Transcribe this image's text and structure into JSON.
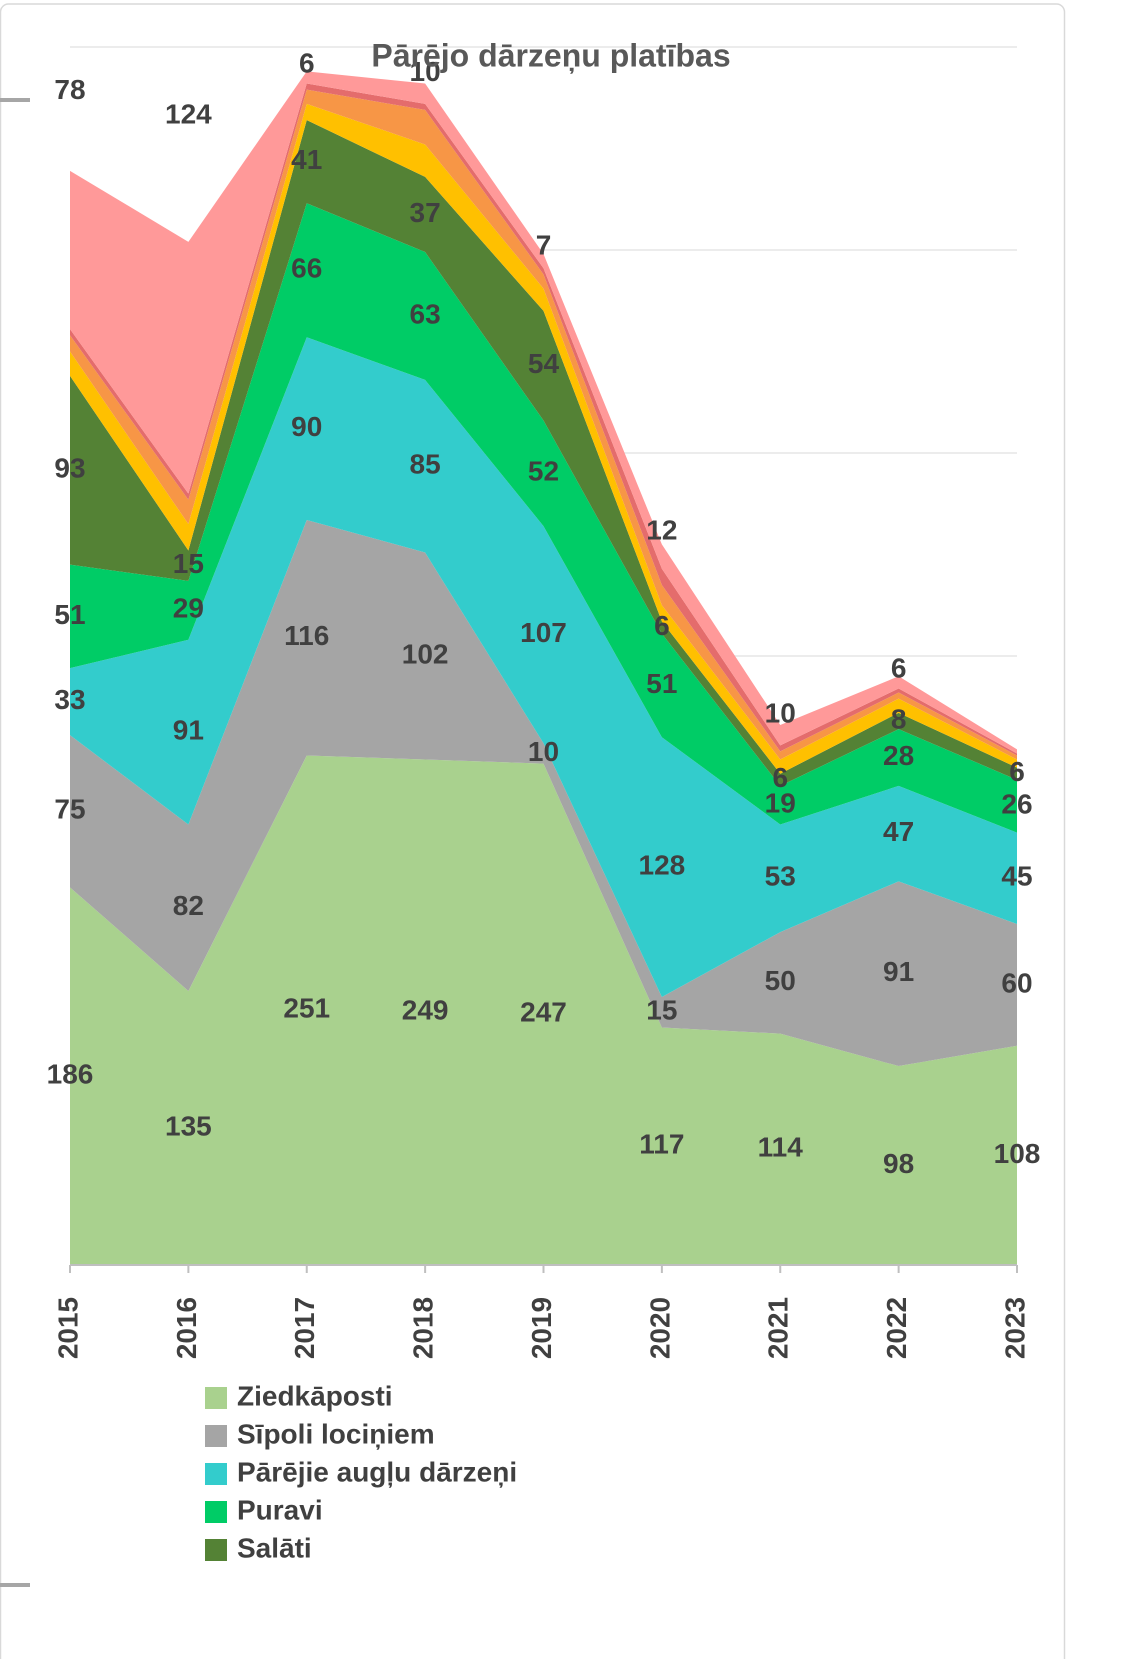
{
  "chart_data": {
    "type": "stacked_area",
    "title": "Pārējo dārzeņu platības",
    "categories": [
      "2015",
      "2016",
      "2017",
      "2018",
      "2019",
      "2020",
      "2021",
      "2022",
      "2023"
    ],
    "ylim": [
      0,
      600
    ],
    "yticks": [
      0,
      100,
      200,
      300,
      400,
      500,
      600
    ],
    "grid": true,
    "legend": "bottom",
    "series": [
      {
        "name": "Ziedkāposti",
        "color": "#a9d18e",
        "values": [
          186,
          135,
          251,
          249,
          247,
          117,
          114,
          98,
          108
        ]
      },
      {
        "name": "Sīpoli lociņiem",
        "color": "#a5a5a5",
        "values": [
          75,
          82,
          116,
          102,
          10,
          15,
          50,
          91,
          60
        ]
      },
      {
        "name": "Pārējie augļu dārzeņi",
        "color": "#33cccc",
        "values": [
          33,
          91,
          90,
          85,
          107,
          128,
          53,
          47,
          45
        ]
      },
      {
        "name": "Puravi",
        "color": "#00cc66",
        "values": [
          51,
          29,
          66,
          63,
          52,
          51,
          19,
          28,
          26
        ]
      },
      {
        "name": "Salāti",
        "color": "#548235",
        "values": [
          93,
          15,
          41,
          37,
          54,
          6,
          6,
          8,
          6
        ]
      },
      {
        "name": null,
        "color": "#ffc000",
        "values": [
          12,
          13,
          8,
          16,
          11,
          8,
          7,
          7,
          4
        ]
      },
      {
        "name": null,
        "color": "#f79646",
        "values": [
          8,
          12,
          7,
          17,
          7,
          10,
          4,
          3,
          2
        ]
      },
      {
        "name": null,
        "color": "#e46c6c",
        "values": [
          3,
          3,
          3,
          3,
          3,
          8,
          3,
          2,
          1
        ]
      },
      {
        "name": null,
        "color": "#ff9999",
        "values": [
          78,
          124,
          6,
          10,
          7,
          12,
          10,
          6,
          2
        ],
        "value_labels": [
          "78",
          "124",
          "6",
          "10",
          "7",
          "12",
          "10",
          "6",
          null
        ]
      }
    ]
  }
}
